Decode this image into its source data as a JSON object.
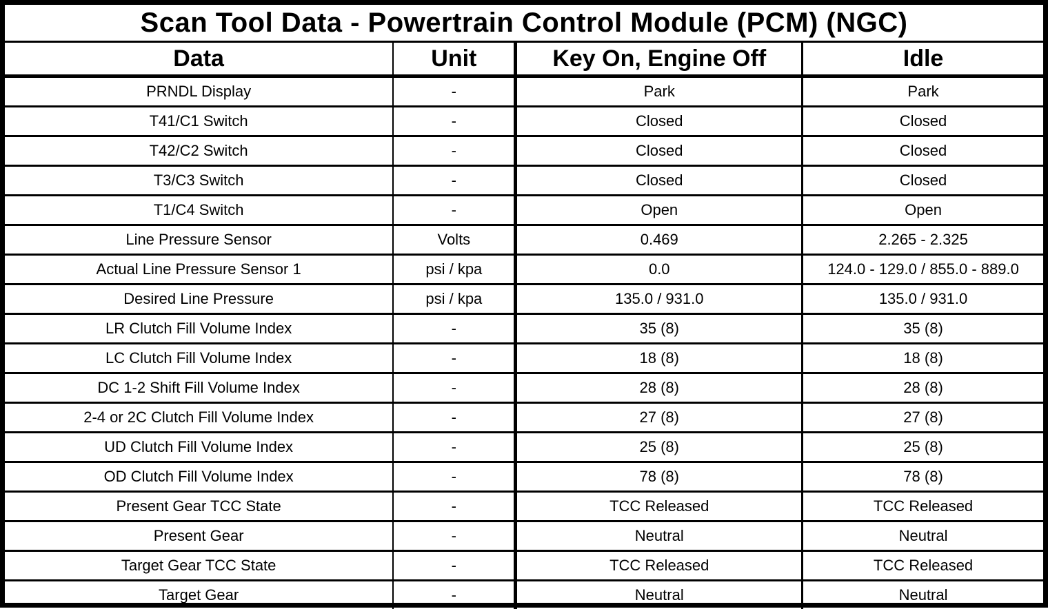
{
  "table": {
    "title": "Scan Tool Data - Powertrain Control Module (PCM) (NGC)",
    "columns": [
      "Data",
      "Unit",
      "Key On, Engine Off",
      "Idle"
    ],
    "rows": [
      {
        "data": "PRNDL Display",
        "unit": "-",
        "key_on_engine_off": "Park",
        "idle": "Park"
      },
      {
        "data": "T41/C1 Switch",
        "unit": "-",
        "key_on_engine_off": "Closed",
        "idle": "Closed"
      },
      {
        "data": "T42/C2 Switch",
        "unit": "-",
        "key_on_engine_off": "Closed",
        "idle": "Closed"
      },
      {
        "data": "T3/C3 Switch",
        "unit": "-",
        "key_on_engine_off": "Closed",
        "idle": "Closed"
      },
      {
        "data": "T1/C4 Switch",
        "unit": "-",
        "key_on_engine_off": "Open",
        "idle": "Open"
      },
      {
        "data": "Line Pressure Sensor",
        "unit": "Volts",
        "key_on_engine_off": "0.469",
        "idle": "2.265 - 2.325"
      },
      {
        "data": "Actual Line Pressure Sensor 1",
        "unit": "psi / kpa",
        "key_on_engine_off": "0.0",
        "idle": "124.0 - 129.0 / 855.0 - 889.0"
      },
      {
        "data": "Desired Line Pressure",
        "unit": "psi / kpa",
        "key_on_engine_off": "135.0 / 931.0",
        "idle": "135.0 / 931.0"
      },
      {
        "data": "LR Clutch Fill Volume Index",
        "unit": "-",
        "key_on_engine_off": "35 (8)",
        "idle": "35 (8)"
      },
      {
        "data": "LC Clutch Fill Volume Index",
        "unit": "-",
        "key_on_engine_off": "18 (8)",
        "idle": "18 (8)"
      },
      {
        "data": "DC 1-2 Shift Fill Volume Index",
        "unit": "-",
        "key_on_engine_off": "28 (8)",
        "idle": "28 (8)"
      },
      {
        "data": "2-4 or 2C Clutch Fill Volume Index",
        "unit": "-",
        "key_on_engine_off": "27 (8)",
        "idle": "27 (8)"
      },
      {
        "data": "UD Clutch Fill Volume Index",
        "unit": "-",
        "key_on_engine_off": "25 (8)",
        "idle": "25 (8)"
      },
      {
        "data": "OD Clutch Fill Volume Index",
        "unit": "-",
        "key_on_engine_off": "78 (8)",
        "idle": "78 (8)"
      },
      {
        "data": "Present Gear TCC State",
        "unit": "-",
        "key_on_engine_off": "TCC Released",
        "idle": "TCC Released"
      },
      {
        "data": "Present Gear",
        "unit": "-",
        "key_on_engine_off": "Neutral",
        "idle": "Neutral"
      },
      {
        "data": "Target Gear TCC State",
        "unit": "-",
        "key_on_engine_off": "TCC Released",
        "idle": "TCC Released"
      },
      {
        "data": "Target Gear",
        "unit": "-",
        "key_on_engine_off": "Neutral",
        "idle": "Neutral"
      }
    ]
  },
  "colors": {
    "border": "#000000",
    "background": "#ffffff",
    "text": "#000000"
  }
}
